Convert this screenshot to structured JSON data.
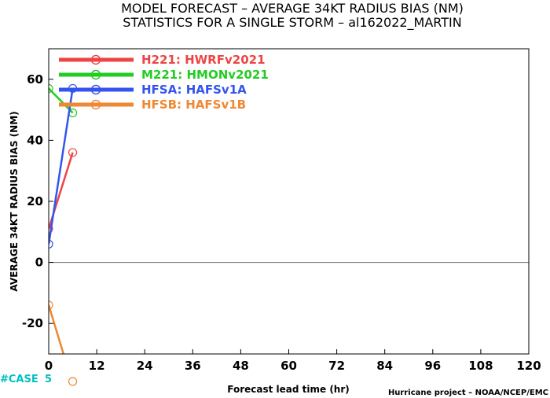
{
  "chart_data": {
    "type": "line",
    "title": "MODEL FORECAST – AVERAGE 34KT RADIUS BIAS (NM)",
    "subtitle": "STATISTICS FOR A SINGLE STORM – al162022_MARTIN",
    "xlabel": "Forecast lead time (hr)",
    "ylabel": "AVERAGE 34KT RADIUS BIAS (NM)",
    "xlim": [
      0,
      120
    ],
    "ylim": [
      -30,
      70
    ],
    "xticks": [
      0,
      12,
      24,
      36,
      48,
      60,
      72,
      84,
      96,
      108,
      120
    ],
    "yticks": [
      -20,
      0,
      20,
      40,
      60
    ],
    "zero_line": true,
    "legend_position": "top-left",
    "series": [
      {
        "name": "H221: HWRFv2021",
        "color": "#ee4444",
        "x": [
          0,
          6
        ],
        "y": [
          11,
          36
        ]
      },
      {
        "name": "M221: HMONv2021",
        "color": "#22cc22",
        "x": [
          0,
          6
        ],
        "y": [
          57,
          49
        ]
      },
      {
        "name": "HFSA: HAFSv1A",
        "color": "#3355ee",
        "x": [
          0,
          6
        ],
        "y": [
          6,
          57
        ]
      },
      {
        "name": "HFSB: HAFSv1B",
        "color": "#ee8833",
        "x": [
          0,
          6
        ],
        "y": [
          -14,
          -40
        ]
      }
    ],
    "case_label": "#CASE",
    "case_counts": [
      5
    ],
    "credit": "Hurricane project – NOAA/NCEP/EMC"
  }
}
